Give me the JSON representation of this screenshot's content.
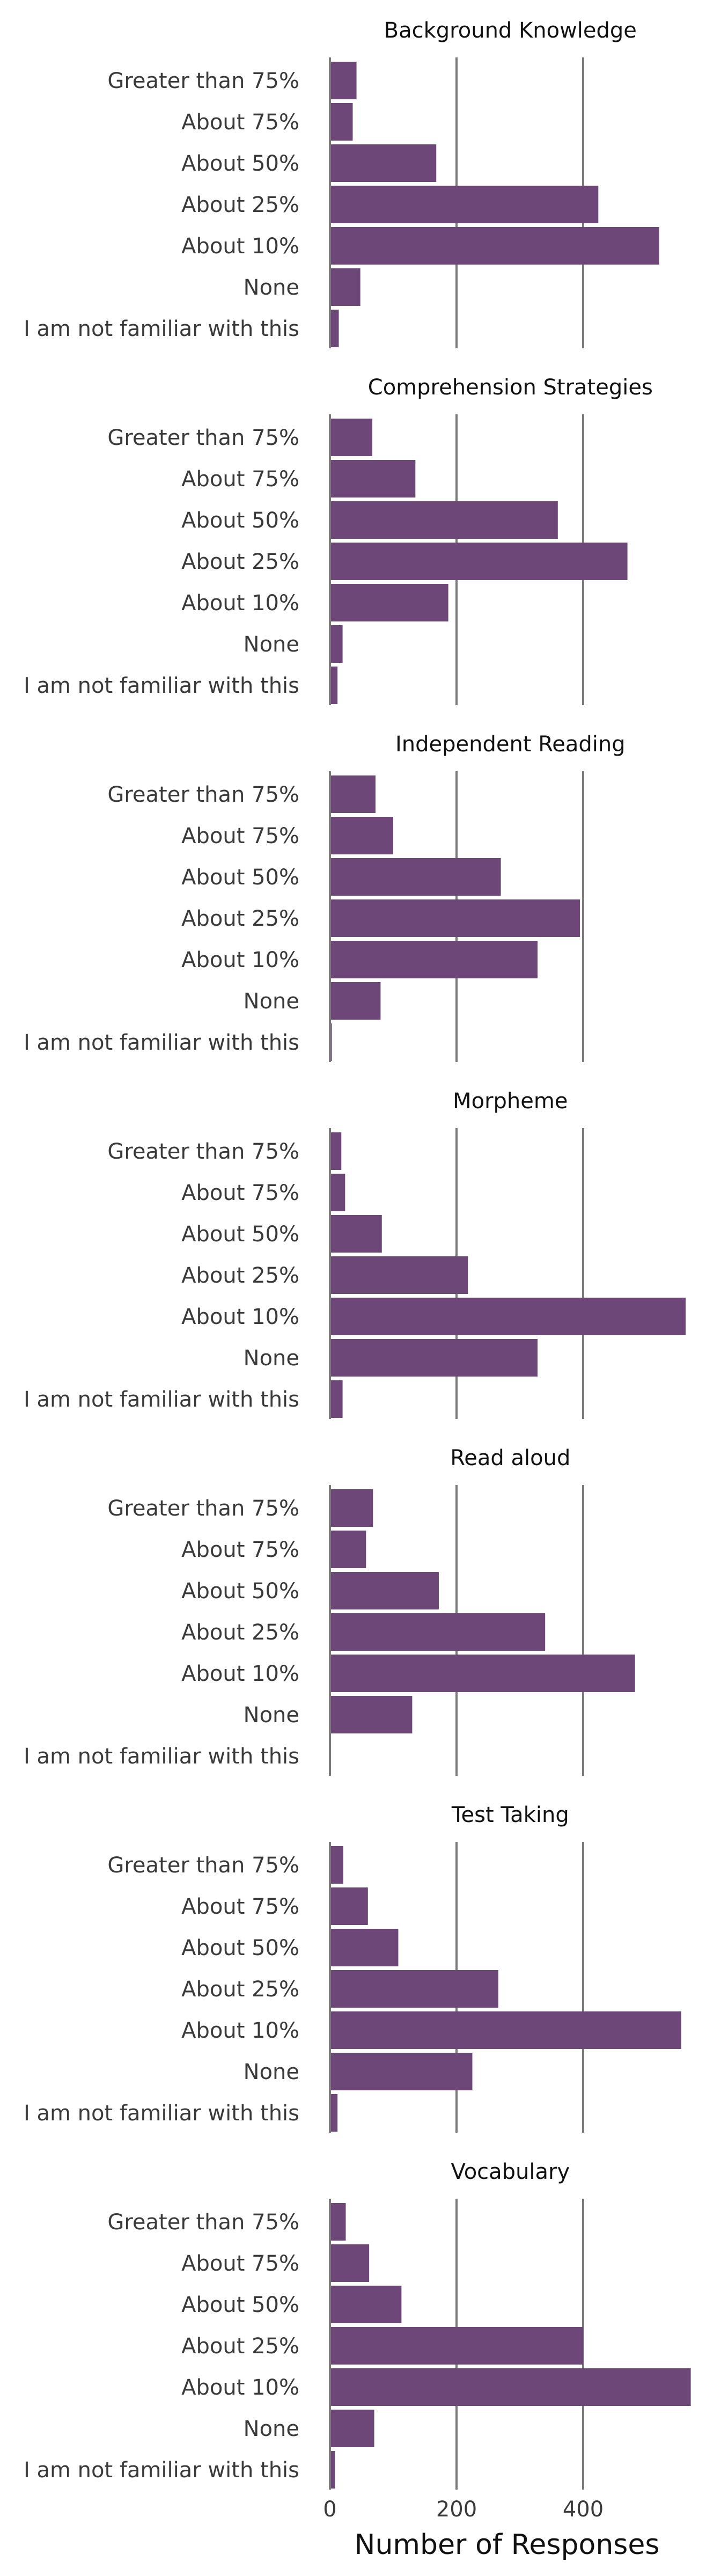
{
  "chart_data": {
    "type": "bar",
    "orientation": "horizontal",
    "categories": [
      "Greater than 75%",
      "About 75%",
      "About 50%",
      "About 25%",
      "About 10%",
      "None",
      "I am not familiar with this"
    ],
    "panels": [
      {
        "title": "Background Knowledge",
        "values": [
          42,
          36,
          168,
          424,
          520,
          48,
          14
        ]
      },
      {
        "title": "Comprehension Strategies",
        "values": [
          67,
          135,
          360,
          470,
          187,
          20,
          12
        ]
      },
      {
        "title": "Independent Reading",
        "values": [
          72,
          100,
          270,
          395,
          328,
          80,
          3
        ]
      },
      {
        "title": "Morpheme",
        "values": [
          18,
          24,
          82,
          218,
          562,
          328,
          20
        ]
      },
      {
        "title": "Read aloud",
        "values": [
          68,
          57,
          172,
          340,
          482,
          130,
          0
        ]
      },
      {
        "title": "Test Taking",
        "values": [
          21,
          60,
          108,
          266,
          555,
          225,
          12
        ]
      },
      {
        "title": "Vocabulary",
        "values": [
          25,
          62,
          113,
          400,
          570,
          70,
          8
        ]
      }
    ],
    "xlabel": "Number of Responses",
    "xticks": [
      0,
      200,
      400
    ],
    "xlim": [
      0,
      570
    ],
    "grid": true,
    "colors": {
      "bar": "#6c4777",
      "grid": "#7a7a7a",
      "label": "#3a3a3a",
      "title": "#111111"
    }
  }
}
